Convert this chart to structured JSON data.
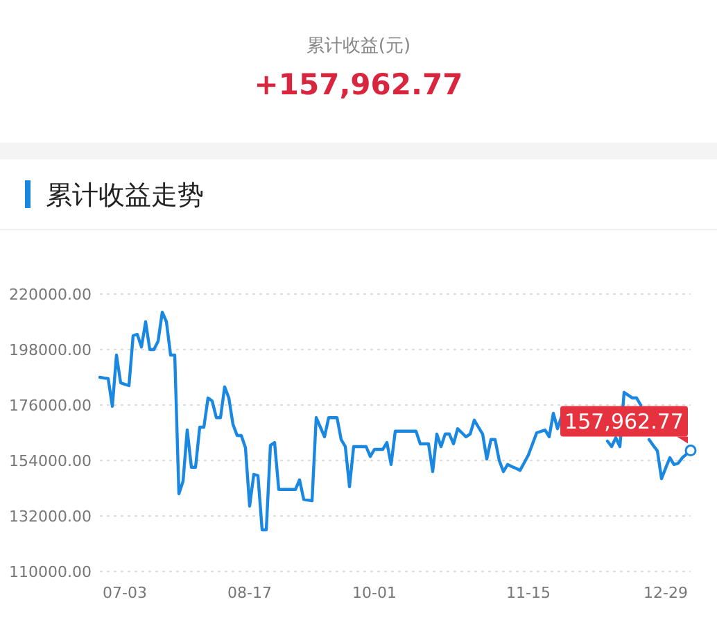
{
  "chart_data": {
    "type": "line",
    "title": "累计收益走势",
    "annotations": [
      "累计收益(元)",
      "+157,962.77",
      {
        "text": "157,962.77",
        "y": 157962.77
      }
    ],
    "categories": [
      null,
      null,
      null,
      null,
      null,
      null,
      "07-03",
      null,
      null,
      null,
      null,
      null,
      null,
      null,
      null,
      null,
      null,
      null,
      null,
      null,
      null,
      null,
      null,
      null,
      null,
      null,
      null,
      null,
      null,
      null,
      null,
      null,
      null,
      null,
      null,
      null,
      "08-17",
      null,
      null,
      null,
      null,
      null,
      null,
      null,
      null,
      null,
      null,
      null,
      null,
      null,
      null,
      null,
      null,
      null,
      null,
      null,
      null,
      null,
      null,
      null,
      null,
      null,
      null,
      null,
      null,
      null,
      "10-01",
      null,
      null,
      null,
      null,
      null,
      null,
      null,
      null,
      null,
      null,
      null,
      null,
      null,
      null,
      null,
      null,
      null,
      null,
      null,
      null,
      null,
      null,
      null,
      null,
      null,
      null,
      null,
      null,
      null,
      null,
      null,
      null,
      null,
      null,
      null,
      null,
      "11-15",
      null,
      null,
      null,
      null,
      null,
      null,
      null,
      null,
      null,
      null,
      null,
      null,
      null,
      null,
      null,
      null,
      null,
      null,
      null,
      null,
      null,
      null,
      null,
      null,
      null,
      null,
      null,
      null,
      null,
      null,
      null,
      null,
      "12-29",
      null,
      null,
      null,
      null,
      null,
      null
    ],
    "series": [
      {
        "color": "#1a88e0",
        "values": [
          187000,
          186700,
          186500,
          175500,
          195800,
          184800,
          184200,
          183700,
          203500,
          204000,
          199000,
          209000,
          198000,
          198000,
          201300,
          212800,
          209000,
          195800,
          195800,
          140800,
          145800,
          166100,
          151300,
          151300,
          167200,
          167200,
          178800,
          177600,
          171000,
          171000,
          183200,
          178800,
          168300,
          163900,
          163900,
          159000,
          135900,
          148500,
          148000,
          126500,
          126500,
          160000,
          161100,
          142500,
          142500,
          142500,
          142500,
          142500,
          146300,
          138600,
          138300,
          138000,
          171000,
          167200,
          163400,
          171000,
          171000,
          171000,
          162300,
          159500,
          143600,
          159500,
          159500,
          159500,
          159500,
          155600,
          158400,
          158400,
          158400,
          161100,
          152400,
          165600,
          165600,
          165600,
          165600,
          165600,
          165600,
          160600,
          160600,
          160600,
          149600,
          164500,
          159500,
          164500,
          164500,
          160600,
          166600,
          165000,
          163400,
          164500,
          170000,
          167200,
          164500,
          154600,
          162300,
          162300,
          154000,
          149600,
          152400,
          151600,
          150900,
          150100,
          153100,
          156200,
          160600,
          165000,
          165500,
          166100,
          163400,
          172700,
          166600,
          171600,
          null,
          null,
          null,
          null,
          null,
          null,
          null,
          null,
          null,
          null,
          161700,
          159500,
          163000,
          159500,
          181000,
          179900,
          178800,
          178800,
          176000,
          null,
          162300,
          160000,
          157800,
          146800,
          151000,
          155100,
          152400,
          152900,
          155100,
          156500,
          157962.77
        ]
      }
    ],
    "ylim": [
      110000,
      220000
    ],
    "yticks": [
      {
        "value": 110000,
        "label": "110000.00"
      },
      {
        "value": 132000,
        "label": "132000.00"
      },
      {
        "value": 154000,
        "label": "154000.00"
      },
      {
        "value": 176000,
        "label": "176000.00"
      },
      {
        "value": 198000,
        "label": "198000.00"
      },
      {
        "value": 220000,
        "label": "220000.00"
      }
    ],
    "grid": "y",
    "marker": "none",
    "line_style": "solid"
  }
}
